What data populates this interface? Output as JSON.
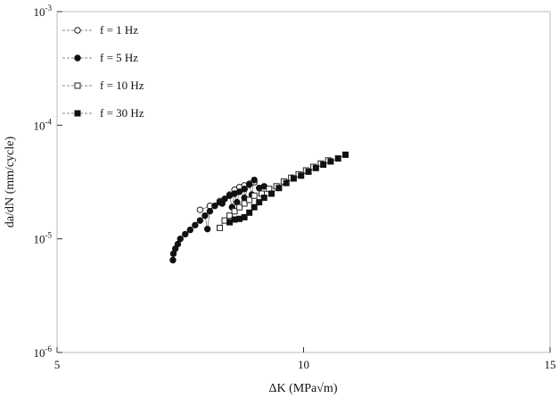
{
  "chart_data": {
    "type": "scatter",
    "title": "",
    "xlabel": "ΔK (MPa√m)",
    "ylabel": "da/dN (mm/cycle)",
    "xlim": [
      5,
      15
    ],
    "ylim": [
      1e-06,
      0.001
    ],
    "yscale": "log",
    "grid": false,
    "legend_position": "top-left",
    "x_ticks": [
      {
        "value": 5,
        "label": "5"
      },
      {
        "value": 10,
        "label": "10"
      },
      {
        "value": 15,
        "label": "15"
      }
    ],
    "y_ticks": [
      {
        "value": 1e-06,
        "base": "10",
        "exp": "-6"
      },
      {
        "value": 1e-05,
        "base": "10",
        "exp": "-5"
      },
      {
        "value": 0.0001,
        "base": "10",
        "exp": "-4"
      },
      {
        "value": 0.001,
        "base": "10",
        "exp": "-3"
      }
    ],
    "series": [
      {
        "name": "f = 1 Hz",
        "marker": "circle",
        "filled": false,
        "points": [
          [
            7.9,
            1.8e-05
          ],
          [
            8.1,
            1.95e-05
          ],
          [
            8.3,
            2.15e-05
          ],
          [
            8.5,
            2.45e-05
          ],
          [
            8.6,
            2.7e-05
          ],
          [
            8.7,
            2.85e-05
          ],
          [
            8.8,
            2.95e-05
          ],
          [
            8.9,
            3.05e-05
          ],
          [
            9.0,
            3.15e-05
          ]
        ]
      },
      {
        "name": "f = 5 Hz",
        "marker": "circle",
        "filled": true,
        "points": [
          [
            7.35,
            6.5e-06
          ],
          [
            7.36,
            7.4e-06
          ],
          [
            7.4,
            8.2e-06
          ],
          [
            7.45,
            9e-06
          ],
          [
            7.5,
            1e-05
          ],
          [
            7.6,
            1.1e-05
          ],
          [
            7.7,
            1.2e-05
          ],
          [
            7.8,
            1.32e-05
          ],
          [
            7.9,
            1.45e-05
          ],
          [
            8.0,
            1.6e-05
          ],
          [
            8.1,
            1.75e-05
          ],
          [
            8.2,
            1.95e-05
          ],
          [
            8.3,
            2.1e-05
          ],
          [
            8.4,
            2.25e-05
          ],
          [
            8.5,
            2.4e-05
          ],
          [
            8.6,
            2.5e-05
          ],
          [
            8.7,
            2.6e-05
          ],
          [
            8.8,
            2.75e-05
          ],
          [
            8.9,
            3e-05
          ],
          [
            9.0,
            3.3e-05
          ],
          [
            8.35,
            2.05e-05
          ],
          [
            8.55,
            1.9e-05
          ],
          [
            8.65,
            2.1e-05
          ],
          [
            8.8,
            2.3e-05
          ],
          [
            8.95,
            2.45e-05
          ],
          [
            9.1,
            2.8e-05
          ],
          [
            9.2,
            2.9e-05
          ],
          [
            8.05,
            1.22e-05
          ]
        ]
      },
      {
        "name": "f = 10 Hz",
        "marker": "square",
        "filled": false,
        "points": [
          [
            8.3,
            1.25e-05
          ],
          [
            8.4,
            1.45e-05
          ],
          [
            8.5,
            1.6e-05
          ],
          [
            8.6,
            1.75e-05
          ],
          [
            8.7,
            1.9e-05
          ],
          [
            8.8,
            2.05e-05
          ],
          [
            8.9,
            2.2e-05
          ],
          [
            9.0,
            2.4e-05
          ],
          [
            9.15,
            2.5e-05
          ],
          [
            9.3,
            2.75e-05
          ],
          [
            9.45,
            2.9e-05
          ],
          [
            9.6,
            3.2e-05
          ],
          [
            9.75,
            3.45e-05
          ],
          [
            9.9,
            3.7e-05
          ],
          [
            10.05,
            4e-05
          ],
          [
            10.2,
            4.3e-05
          ],
          [
            10.35,
            4.6e-05
          ],
          [
            10.5,
            4.9e-05
          ]
        ]
      },
      {
        "name": "f = 30 Hz",
        "marker": "square",
        "filled": true,
        "points": [
          [
            8.5,
            1.4e-05
          ],
          [
            8.6,
            1.48e-05
          ],
          [
            8.7,
            1.5e-05
          ],
          [
            8.8,
            1.55e-05
          ],
          [
            8.9,
            1.7e-05
          ],
          [
            9.0,
            1.9e-05
          ],
          [
            9.1,
            2.1e-05
          ],
          [
            9.2,
            2.3e-05
          ],
          [
            9.35,
            2.5e-05
          ],
          [
            9.5,
            2.8e-05
          ],
          [
            9.65,
            3.1e-05
          ],
          [
            9.8,
            3.4e-05
          ],
          [
            9.95,
            3.6e-05
          ],
          [
            10.1,
            3.9e-05
          ],
          [
            10.25,
            4.2e-05
          ],
          [
            10.4,
            4.5e-05
          ],
          [
            10.55,
            4.8e-05
          ],
          [
            10.7,
            5.1e-05
          ],
          [
            10.85,
            5.5e-05
          ]
        ]
      }
    ]
  }
}
